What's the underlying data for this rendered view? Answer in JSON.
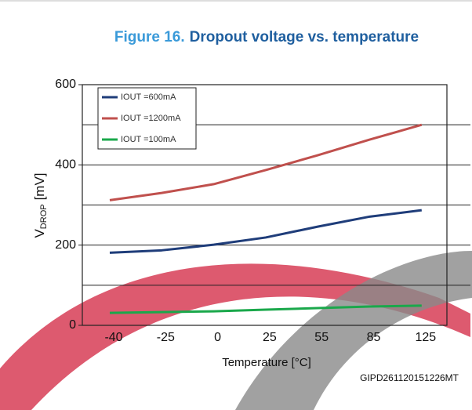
{
  "chart_data": {
    "type": "line",
    "title_prefix": "Figure 16.",
    "title": "Dropout voltage vs. temperature",
    "y_label": {
      "main": "V",
      "sub": "DROP",
      "unit": "[mV]"
    },
    "x_label": "Temperature [°C]",
    "code": "GIPD261120151226MT",
    "categories": [
      "-40",
      "-25",
      "0",
      "25",
      "55",
      "85",
      "125"
    ],
    "series": [
      {
        "name": "IOUT =600mA",
        "color": "#1f3d7a",
        "values": [
          181,
          187,
          201,
          219,
          246,
          271,
          287
        ]
      },
      {
        "name": "IOUT =1200mA",
        "color": "#c0504d",
        "values": [
          312,
          330,
          352,
          387,
          424,
          463,
          500
        ]
      },
      {
        "name": "IOUT =100mA",
        "color": "#1aa84b",
        "values": [
          31,
          33,
          35,
          39,
          43,
          47,
          49
        ]
      }
    ],
    "ylim": [
      0,
      600
    ],
    "yticks": [
      0,
      200,
      400,
      600
    ],
    "gridlines": [
      100,
      200,
      300,
      400,
      500
    ],
    "legend": "upper left"
  }
}
